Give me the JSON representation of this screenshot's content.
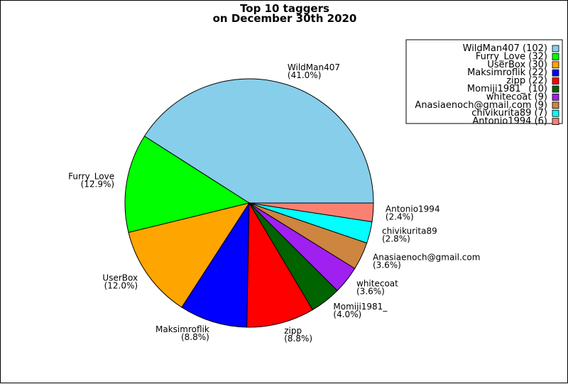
{
  "chart_data": {
    "type": "pie",
    "title_line1": "Top 10 taggers",
    "title_line2": "on December 30th 2020",
    "slices": [
      {
        "name": "WildMan407",
        "value": 102,
        "percent": "41.0%",
        "legend": "WildMan407 (102)",
        "color": "#87ceeb"
      },
      {
        "name": "Furry_Love",
        "value": 32,
        "percent": "12.9%",
        "legend": "Furry_Love (32)",
        "color": "#00ff00"
      },
      {
        "name": "UserBox",
        "value": 30,
        "percent": "12.0%",
        "legend": "UserBox (30)",
        "color": "#ffa500"
      },
      {
        "name": "Maksimroflik",
        "value": 22,
        "percent": "8.8%",
        "legend": "Maksimroflik (22)",
        "color": "#0000ff"
      },
      {
        "name": "zipp",
        "value": 22,
        "percent": "8.8%",
        "legend": "zipp (22)",
        "color": "#ff0000"
      },
      {
        "name": "Momiji1981_",
        "value": 10,
        "percent": "4.0%",
        "legend": "Momiji1981_ (10)",
        "color": "#006400"
      },
      {
        "name": "whitecoat",
        "value": 9,
        "percent": "3.6%",
        "legend": "whitecoat (9)",
        "color": "#a020f0"
      },
      {
        "name": "Anasiaenoch@gmail.com",
        "value": 9,
        "percent": "3.6%",
        "legend": "Anasiaenoch@gmail.com (9)",
        "color": "#cd853f"
      },
      {
        "name": "chivikurita89",
        "value": 7,
        "percent": "2.8%",
        "legend": "chivikurita89 (7)",
        "color": "#00ffff"
      },
      {
        "name": "Antonio1994",
        "value": 6,
        "percent": "2.4%",
        "legend": "Antonio1994 (6)",
        "color": "#fa8072"
      }
    ],
    "legend_position": "top-right",
    "start_angle": "0 degrees (3 o'clock), counter-clockwise"
  }
}
